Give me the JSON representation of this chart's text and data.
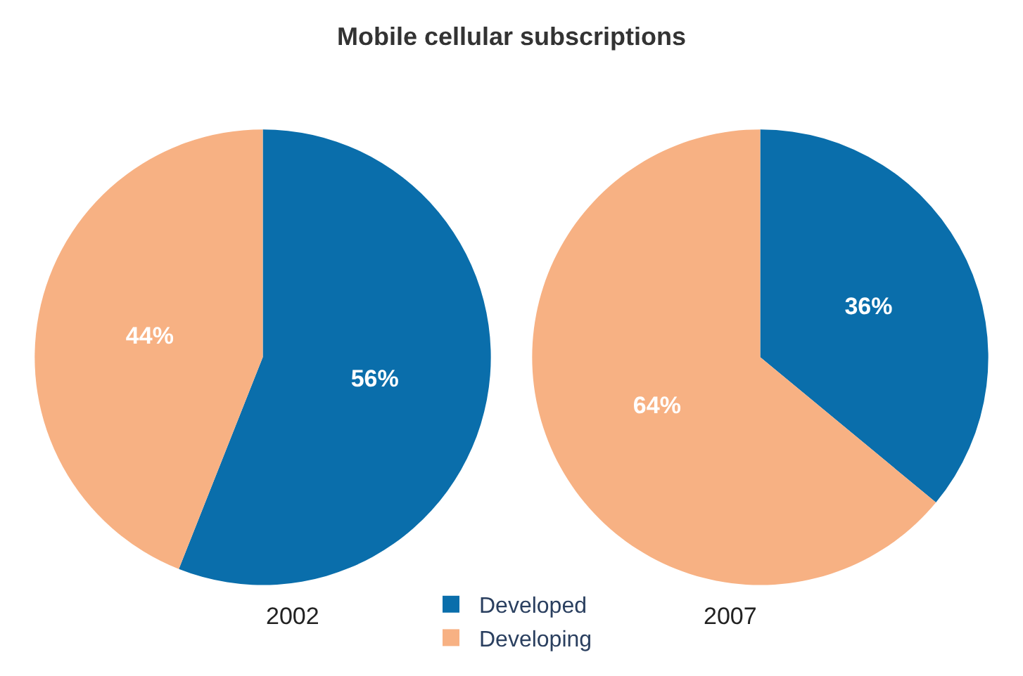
{
  "chart_data": [
    {
      "type": "pie",
      "title": "Mobile cellular subscriptions",
      "xlabel": "2002",
      "categories": [
        "Developed",
        "Developing"
      ],
      "values": [
        56,
        44
      ],
      "value_labels": [
        "56%",
        "44%"
      ],
      "colors": [
        "#0a6eab",
        "#f7b183"
      ],
      "legend": "bottom"
    },
    {
      "type": "pie",
      "xlabel": "2007",
      "values": [
        36,
        64
      ],
      "value_labels": [
        "36%",
        "64%"
      ],
      "colors": [
        "#0a6eab",
        "#f7b183"
      ]
    }
  ]
}
